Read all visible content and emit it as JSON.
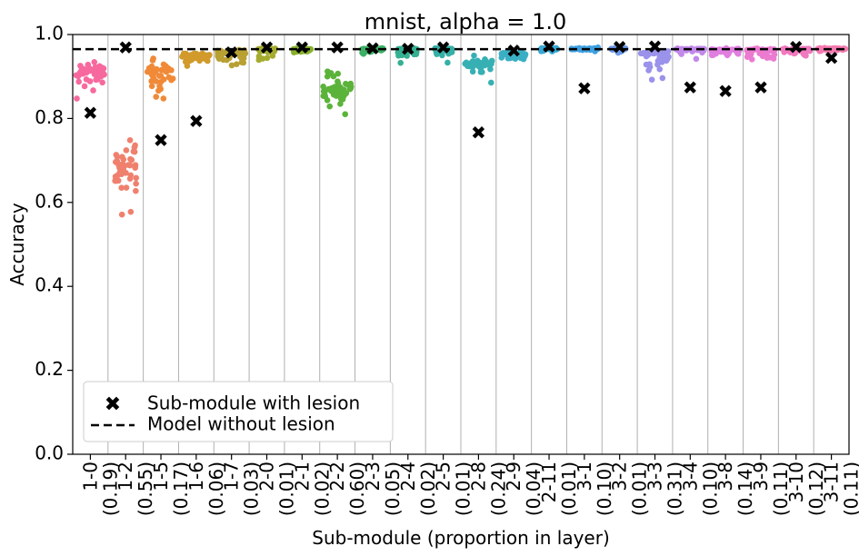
{
  "chart_data": {
    "type": "scatter",
    "title": "mnist, alpha = 1.0",
    "xlabel": "Sub-module (proportion in layer)",
    "ylabel": "Accuracy",
    "ylim": [
      0.0,
      1.0
    ],
    "yticks": [
      "0.0",
      "0.2",
      "0.4",
      "0.6",
      "0.8",
      "1.0"
    ],
    "baseline": 0.965,
    "grid": "vertical",
    "legend_position": "lower-left",
    "legend": [
      "Sub-module with lesion",
      "Model without lesion"
    ],
    "categories": [
      {
        "label": "1-0",
        "prop": "(0.19)",
        "lesion": 0.81,
        "color": "#f7699e",
        "lo": 0.82,
        "hi": 0.95,
        "center": 0.915,
        "spread": 0.8
      },
      {
        "label": "1-2",
        "prop": "(0.55)",
        "lesion": 0.965,
        "color": "#f0806e",
        "lo": 0.5,
        "hi": 0.84,
        "center": 0.69,
        "spread": 0.6
      },
      {
        "label": "1-5",
        "prop": "(0.17)",
        "lesion": 0.745,
        "color": "#f08a38",
        "lo": 0.815,
        "hi": 0.955,
        "center": 0.915,
        "spread": 0.8
      },
      {
        "label": "1-6",
        "prop": "(0.06)",
        "lesion": 0.79,
        "color": "#d19a2a",
        "lo": 0.9,
        "hi": 0.965,
        "center": 0.95,
        "spread": 0.8
      },
      {
        "label": "1-7",
        "prop": "(0.03)",
        "lesion": 0.953,
        "color": "#b8a033",
        "lo": 0.905,
        "hi": 0.97,
        "center": 0.955,
        "spread": 0.8
      },
      {
        "label": "2-0",
        "prop": "(0.01)",
        "lesion": 0.965,
        "color": "#a5ab2e",
        "lo": 0.925,
        "hi": 0.97,
        "center": 0.965,
        "spread": 0.5
      },
      {
        "label": "2-1",
        "prop": "(0.02)",
        "lesion": 0.965,
        "color": "#88b12f",
        "lo": 0.955,
        "hi": 0.97,
        "center": 0.965,
        "spread": 0.5
      },
      {
        "label": "2-2",
        "prop": "(0.60)",
        "lesion": 0.965,
        "color": "#5bb33a",
        "lo": 0.77,
        "hi": 0.965,
        "center": 0.87,
        "spread": 0.8
      },
      {
        "label": "2-3",
        "prop": "(0.05)",
        "lesion": 0.963,
        "color": "#3bb064",
        "lo": 0.925,
        "hi": 0.97,
        "center": 0.965,
        "spread": 0.6
      },
      {
        "label": "2-4",
        "prop": "(0.02)",
        "lesion": 0.962,
        "color": "#35b092",
        "lo": 0.925,
        "hi": 0.97,
        "center": 0.965,
        "spread": 0.6
      },
      {
        "label": "2-5",
        "prop": "(0.01)",
        "lesion": 0.965,
        "color": "#35b0a6",
        "lo": 0.925,
        "hi": 0.97,
        "center": 0.965,
        "spread": 0.5
      },
      {
        "label": "2-8",
        "prop": "(0.24)",
        "lesion": 0.763,
        "color": "#37b0b4",
        "lo": 0.875,
        "hi": 0.97,
        "center": 0.93,
        "spread": 0.8
      },
      {
        "label": "2-9",
        "prop": "(0.04)",
        "lesion": 0.958,
        "color": "#3aafc4",
        "lo": 0.925,
        "hi": 0.97,
        "center": 0.955,
        "spread": 0.7
      },
      {
        "label": "2-11",
        "prop": "(0.01)",
        "lesion": 0.967,
        "color": "#3aa9d5",
        "lo": 0.955,
        "hi": 0.97,
        "center": 0.966,
        "spread": 0.5
      },
      {
        "label": "3-1",
        "prop": "(0.10)",
        "lesion": 0.868,
        "color": "#3ea0e0",
        "lo": 0.955,
        "hi": 0.97,
        "center": 0.966,
        "spread": 0.8
      },
      {
        "label": "3-2",
        "prop": "(0.01)",
        "lesion": 0.966,
        "color": "#6e9ae8",
        "lo": 0.955,
        "hi": 0.97,
        "center": 0.966,
        "spread": 0.5
      },
      {
        "label": "3-3",
        "prop": "(0.31)",
        "lesion": 0.967,
        "color": "#9b92eb",
        "lo": 0.835,
        "hi": 0.97,
        "center": 0.955,
        "spread": 0.8
      },
      {
        "label": "3-4",
        "prop": "(0.10)",
        "lesion": 0.87,
        "color": "#c389ea",
        "lo": 0.94,
        "hi": 0.97,
        "center": 0.965,
        "spread": 0.8
      },
      {
        "label": "3-8",
        "prop": "(0.14)",
        "lesion": 0.862,
        "color": "#e07fe0",
        "lo": 0.93,
        "hi": 0.97,
        "center": 0.963,
        "spread": 0.8
      },
      {
        "label": "3-9",
        "prop": "(0.11)",
        "lesion": 0.87,
        "color": "#eb7bd0",
        "lo": 0.93,
        "hi": 0.97,
        "center": 0.963,
        "spread": 0.8
      },
      {
        "label": "3-10",
        "prop": "(0.12)",
        "lesion": 0.966,
        "color": "#f079bf",
        "lo": 0.94,
        "hi": 0.97,
        "center": 0.965,
        "spread": 0.8
      },
      {
        "label": "3-11",
        "prop": "(0.11)",
        "lesion": 0.94,
        "color": "#f57ab0",
        "lo": 0.955,
        "hi": 0.97,
        "center": 0.966,
        "spread": 0.8
      }
    ]
  }
}
